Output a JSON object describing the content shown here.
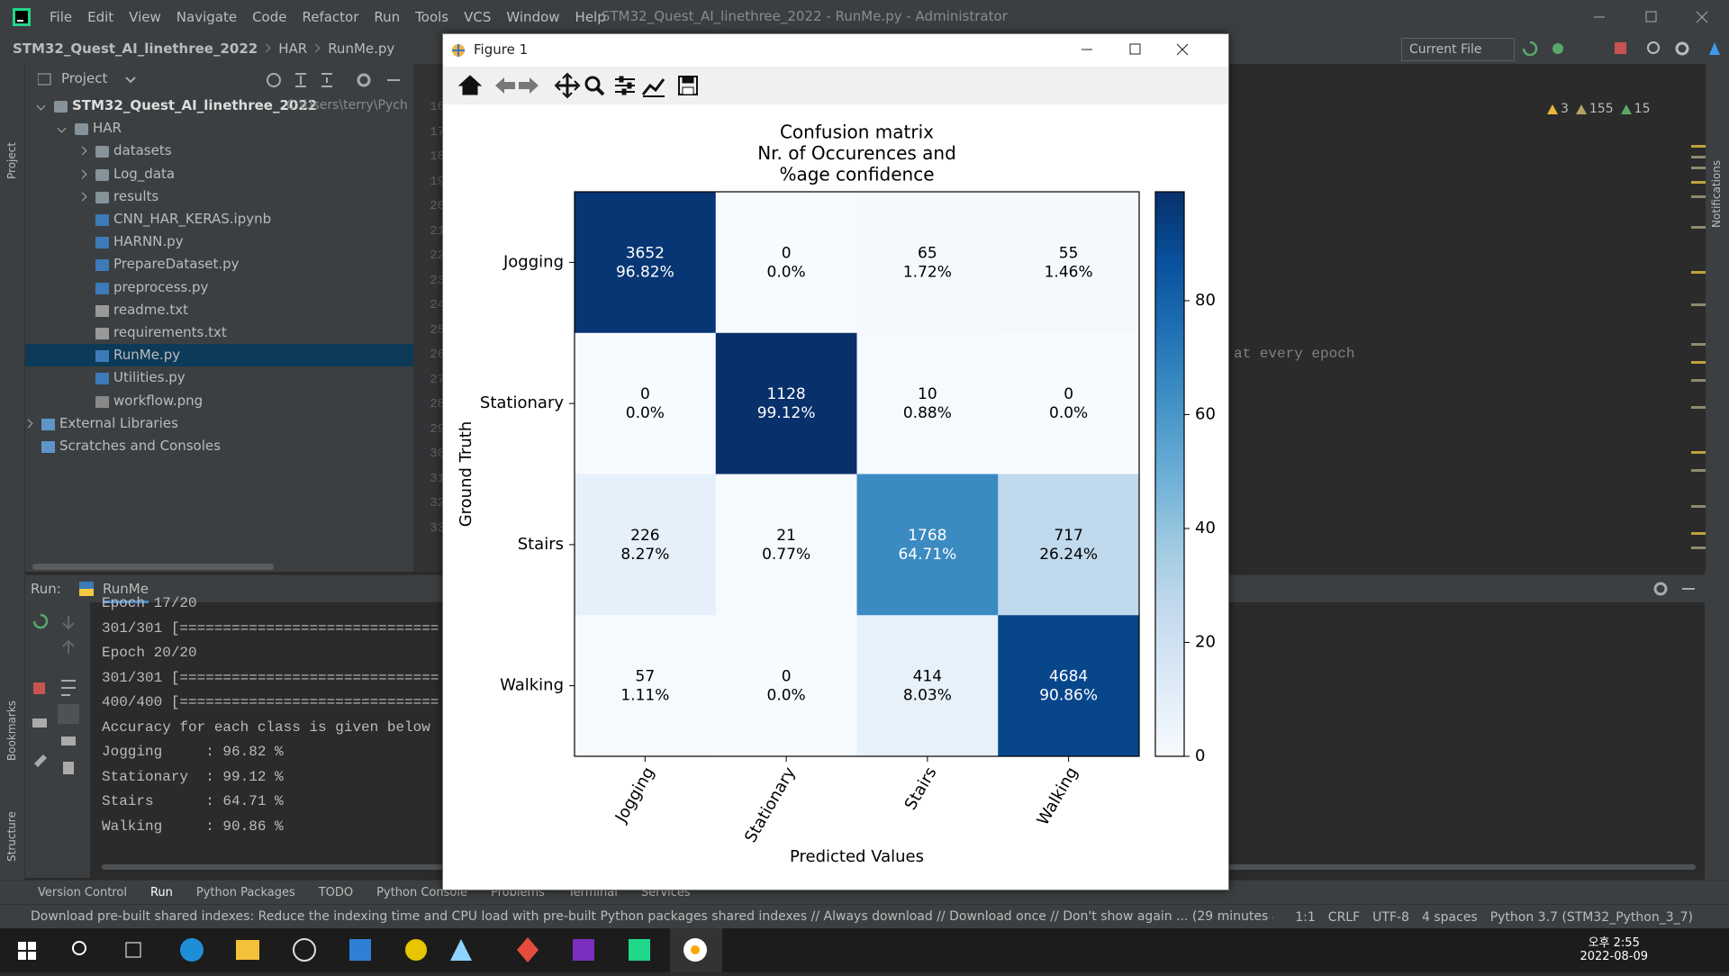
{
  "window": {
    "title": "STM32_Quest_AI_linethree_2022 - RunMe.py - Administrator",
    "menu": [
      "File",
      "Edit",
      "View",
      "Navigate",
      "Code",
      "Refactor",
      "Run",
      "Tools",
      "VCS",
      "Window",
      "Help"
    ]
  },
  "navbar": {
    "breadcrumbs": [
      "STM32_Quest_AI_linethree_2022",
      "HAR",
      "RunMe.py"
    ],
    "run_config": "Current File"
  },
  "side_labels": {
    "project": "Project",
    "bookmarks": "Bookmarks",
    "structure": "Structure",
    "notifications": "Notifications"
  },
  "project_panel": {
    "title": "Project",
    "root_path": "C:\\Users\\terry\\Pych",
    "tree": [
      "STM32_Quest_AI_linethree_2022",
      "HAR",
      "datasets",
      "Log_data",
      "results",
      "CNN_HAR_KERAS.ipynb",
      "HARNN.py",
      "PrepareDataset.py",
      "preprocess.py",
      "readme.txt",
      "requirements.txt",
      "RunMe.py",
      "Utilities.py",
      "workflow.png",
      "External Libraries",
      "Scratches and Consoles"
    ]
  },
  "editor": {
    "line_numbers": [
      16,
      17,
      18,
      19,
      20,
      21,
      22,
      23,
      24,
      25,
      26,
      27,
      28,
      29,
      30,
      31,
      32,
      33
    ],
    "code_fragment": "at every epoch",
    "inspections": [
      3,
      155,
      15
    ]
  },
  "run_panel": {
    "label": "Run:",
    "tab": "RunMe",
    "output": [
      "Epoch 17/20",
      "301/301 [==============================",
      "Epoch 20/20",
      "301/301 [==============================",
      "400/400 [==============================",
      "Accuracy for each class is given below",
      "Jogging     : 96.82 %",
      "Stationary  : 99.12 %",
      "Stairs      : 64.71 %",
      "Walking     : 90.86 %"
    ]
  },
  "tool_tabs": [
    "Version Control",
    "Run",
    "Python Packages",
    "TODO",
    "Python Console",
    "Problems",
    "Terminal",
    "Services"
  ],
  "status_bar": {
    "message": "Download pre-built shared indexes: Reduce the indexing time and CPU load with pre-built Python packages shared indexes // Always download // Download once // Don't show again ... (29 minutes ag",
    "items": [
      "1:1",
      "CRLF",
      "UTF-8",
      "4 spaces",
      "Python 3.7 (STM32_Python_3_7)"
    ]
  },
  "figure": {
    "title": "Figure 1"
  },
  "chart_data": {
    "type": "heatmap",
    "title": [
      "Confusion matrix",
      "Nr. of Occurences and",
      "%age confidence"
    ],
    "x_categories": [
      "Jogging",
      "Stationary",
      "Stairs",
      "Walking"
    ],
    "y_categories": [
      "Jogging",
      "Stationary",
      "Stairs",
      "Walking"
    ],
    "xlabel": "Predicted Values",
    "ylabel": "Ground Truth",
    "counts": [
      [
        3652,
        0,
        65,
        55
      ],
      [
        0,
        1128,
        10,
        0
      ],
      [
        226,
        21,
        1768,
        717
      ],
      [
        57,
        0,
        414,
        4684
      ]
    ],
    "values": [
      [
        96.82,
        0,
        1.72,
        1.46
      ],
      [
        0,
        99.12,
        0.88,
        0
      ],
      [
        8.27,
        0.77,
        64.71,
        26.24
      ],
      [
        1.11,
        0,
        8.03,
        90.86
      ]
    ],
    "value_labels": [
      [
        "96.82%",
        "0.0%",
        "1.72%",
        "1.46%"
      ],
      [
        "0.0%",
        "99.12%",
        "0.88%",
        "0.0%"
      ],
      [
        "8.27%",
        "0.77%",
        "64.71%",
        "26.24%"
      ],
      [
        "1.11%",
        "0.0%",
        "8.03%",
        "90.86%"
      ]
    ],
    "colormap": "Blues",
    "clim": [
      0,
      99.12
    ],
    "cticks": [
      0,
      20,
      40,
      60,
      80
    ]
  },
  "taskbar": {
    "time": "오후 2:55",
    "date": "2022-08-09"
  }
}
